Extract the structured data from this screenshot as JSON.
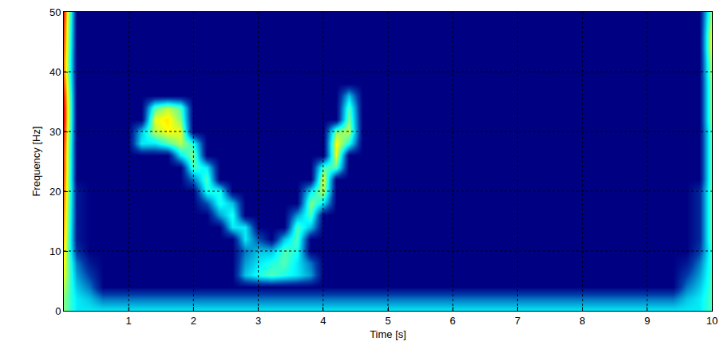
{
  "chart_data": {
    "type": "heatmap",
    "x_label": "Time [s]",
    "y_label": "Frequency [Hz]",
    "x": [
      0,
      0.2,
      0.4,
      0.6,
      0.8,
      1,
      1.2,
      1.4,
      1.6,
      1.8,
      2,
      2.2,
      2.4,
      2.6,
      2.8,
      3,
      3.2,
      3.4,
      3.6,
      3.8,
      4,
      4.2,
      4.4,
      4.6,
      4.8,
      5,
      5.2,
      5.4,
      5.6,
      5.8,
      6,
      6.2,
      6.4,
      6.6,
      6.8,
      7,
      7.2,
      7.4,
      7.6,
      7.8,
      8,
      8.2,
      8.4,
      8.6,
      8.8,
      9,
      9.2,
      9.4,
      9.6,
      9.8,
      10
    ],
    "y": [
      0,
      2,
      4,
      6,
      8,
      10,
      12,
      14,
      16,
      18,
      20,
      22,
      24,
      26,
      28,
      30,
      32,
      34,
      36,
      38,
      40,
      42,
      44,
      46,
      48,
      50
    ],
    "z": [
      [
        0.5,
        0.35,
        0.35,
        0.35,
        0.35,
        0.35,
        0.35,
        0.35,
        0.35,
        0.35,
        0.35,
        0.35,
        0.35,
        0.35,
        0.35,
        0.35,
        0.35,
        0.35,
        0.35,
        0.35,
        0.35,
        0.35,
        0.35,
        0.35,
        0.35,
        0.35,
        0.35,
        0.35,
        0.35,
        0.35,
        0.35,
        0.35,
        0.35,
        0.35,
        0.35,
        0.35,
        0.35,
        0.35,
        0.35,
        0.35,
        0.35,
        0.35,
        0.35,
        0.35,
        0.35,
        0.35,
        0.35,
        0.35,
        0.35,
        0.35,
        0.45
      ],
      [
        0.5,
        0.35,
        0.3,
        0.2,
        0.2,
        0.2,
        0.2,
        0.2,
        0.2,
        0.2,
        0.2,
        0.2,
        0.2,
        0.2,
        0.2,
        0.2,
        0.2,
        0.2,
        0.2,
        0.2,
        0.2,
        0.2,
        0.2,
        0.2,
        0.2,
        0.2,
        0.2,
        0.2,
        0.2,
        0.2,
        0.2,
        0.2,
        0.2,
        0.2,
        0.2,
        0.2,
        0.2,
        0.2,
        0.2,
        0.2,
        0.2,
        0.2,
        0.2,
        0.2,
        0.2,
        0.2,
        0.2,
        0.2,
        0.3,
        0.35,
        0.45
      ],
      [
        0.55,
        0.3,
        0.2,
        0,
        0,
        0,
        0,
        0,
        0,
        0,
        0,
        0,
        0,
        0,
        0,
        0,
        0,
        0,
        0,
        0,
        0,
        0,
        0,
        0,
        0,
        0,
        0,
        0,
        0,
        0,
        0,
        0,
        0,
        0,
        0,
        0,
        0,
        0,
        0,
        0,
        0,
        0,
        0,
        0,
        0,
        0,
        0,
        0,
        0.2,
        0.3,
        0.45
      ],
      [
        0.6,
        0.25,
        0.12,
        0,
        0,
        0,
        0,
        0,
        0,
        0,
        0,
        0,
        0,
        0,
        0.3,
        0.4,
        0.45,
        0.4,
        0.35,
        0.25,
        0,
        0,
        0,
        0,
        0,
        0,
        0,
        0,
        0,
        0,
        0,
        0,
        0,
        0,
        0,
        0,
        0,
        0,
        0,
        0,
        0,
        0,
        0,
        0,
        0,
        0,
        0,
        0,
        0.12,
        0.25,
        0.45
      ],
      [
        0.62,
        0.2,
        0.05,
        0,
        0,
        0,
        0,
        0,
        0,
        0,
        0,
        0,
        0,
        0,
        0.25,
        0.35,
        0.4,
        0.45,
        0.35,
        0.2,
        0,
        0,
        0,
        0,
        0,
        0,
        0,
        0,
        0,
        0,
        0,
        0,
        0,
        0,
        0,
        0,
        0,
        0,
        0,
        0,
        0,
        0,
        0,
        0,
        0,
        0,
        0,
        0,
        0.05,
        0.2,
        0.45
      ],
      [
        0.65,
        0.1,
        0,
        0,
        0,
        0,
        0,
        0,
        0,
        0,
        0,
        0,
        0,
        0,
        0.2,
        0.3,
        0.3,
        0.45,
        0.4,
        0,
        0,
        0,
        0,
        0,
        0,
        0,
        0,
        0,
        0,
        0,
        0,
        0,
        0,
        0,
        0,
        0,
        0,
        0,
        0,
        0,
        0,
        0,
        0,
        0,
        0,
        0,
        0,
        0,
        0,
        0.12,
        0.45
      ],
      [
        0.68,
        0.05,
        0,
        0,
        0,
        0,
        0,
        0,
        0,
        0,
        0,
        0,
        0,
        0,
        0.35,
        0.15,
        0,
        0.3,
        0.45,
        0,
        0,
        0,
        0,
        0,
        0,
        0,
        0,
        0,
        0,
        0,
        0,
        0,
        0,
        0,
        0,
        0,
        0,
        0,
        0,
        0,
        0,
        0,
        0,
        0,
        0,
        0,
        0,
        0,
        0,
        0.08,
        0.5
      ],
      [
        0.7,
        0.05,
        0,
        0,
        0,
        0,
        0,
        0,
        0,
        0,
        0,
        0,
        0,
        0.35,
        0.35,
        0,
        0,
        0,
        0.45,
        0.3,
        0,
        0,
        0,
        0,
        0,
        0,
        0,
        0,
        0,
        0,
        0,
        0,
        0,
        0,
        0,
        0,
        0,
        0,
        0,
        0,
        0,
        0,
        0,
        0,
        0,
        0,
        0,
        0,
        0,
        0.08,
        0.5
      ],
      [
        0.72,
        0.05,
        0,
        0,
        0,
        0,
        0,
        0,
        0,
        0,
        0,
        0,
        0.25,
        0.4,
        0,
        0,
        0,
        0,
        0.25,
        0.45,
        0,
        0,
        0,
        0,
        0,
        0,
        0,
        0,
        0,
        0,
        0,
        0,
        0,
        0,
        0,
        0,
        0,
        0,
        0,
        0,
        0,
        0,
        0,
        0,
        0,
        0,
        0,
        0,
        0,
        0.08,
        0.5
      ],
      [
        0.74,
        0.05,
        0,
        0,
        0,
        0,
        0,
        0,
        0,
        0,
        0,
        0.15,
        0.4,
        0.3,
        0,
        0,
        0,
        0,
        0,
        0.5,
        0.35,
        0,
        0,
        0,
        0,
        0,
        0,
        0,
        0,
        0,
        0,
        0,
        0,
        0,
        0,
        0,
        0,
        0,
        0,
        0,
        0,
        0,
        0,
        0,
        0,
        0,
        0,
        0,
        0,
        0.08,
        0.5
      ],
      [
        0.76,
        0.05,
        0,
        0,
        0,
        0,
        0,
        0,
        0,
        0,
        0,
        0.4,
        0.4,
        0,
        0,
        0,
        0,
        0,
        0,
        0.35,
        0.55,
        0,
        0,
        0,
        0,
        0,
        0,
        0,
        0,
        0,
        0,
        0,
        0,
        0,
        0,
        0,
        0,
        0,
        0,
        0,
        0,
        0,
        0,
        0,
        0,
        0,
        0,
        0,
        0,
        0.08,
        0.5
      ],
      [
        0.78,
        0,
        0,
        0,
        0,
        0,
        0,
        0,
        0,
        0,
        0.2,
        0.45,
        0,
        0,
        0,
        0,
        0,
        0,
        0,
        0,
        0.6,
        0,
        0,
        0,
        0,
        0,
        0,
        0,
        0,
        0,
        0,
        0,
        0,
        0,
        0,
        0,
        0,
        0,
        0,
        0,
        0,
        0,
        0,
        0,
        0,
        0,
        0,
        0,
        0,
        0,
        0.5
      ],
      [
        0.8,
        0,
        0,
        0,
        0,
        0,
        0,
        0,
        0,
        0,
        0.45,
        0.35,
        0,
        0,
        0,
        0,
        0,
        0,
        0,
        0,
        0.45,
        0.45,
        0,
        0,
        0,
        0,
        0,
        0,
        0,
        0,
        0,
        0,
        0,
        0,
        0,
        0,
        0,
        0,
        0,
        0,
        0,
        0,
        0,
        0,
        0,
        0,
        0,
        0,
        0,
        0,
        0.5
      ],
      [
        0.8,
        0,
        0,
        0,
        0,
        0,
        0,
        0,
        0,
        0.35,
        0.5,
        0,
        0,
        0,
        0,
        0,
        0,
        0,
        0,
        0,
        0,
        0.6,
        0,
        0,
        0,
        0,
        0,
        0,
        0,
        0,
        0,
        0,
        0,
        0,
        0,
        0,
        0,
        0,
        0,
        0,
        0,
        0,
        0,
        0,
        0,
        0,
        0,
        0,
        0,
        0,
        0.5
      ],
      [
        0.82,
        0,
        0,
        0,
        0,
        0,
        0.35,
        0.35,
        0.45,
        0.55,
        0.4,
        0,
        0,
        0,
        0,
        0,
        0,
        0,
        0,
        0,
        0,
        0.62,
        0.4,
        0,
        0,
        0,
        0,
        0,
        0,
        0,
        0,
        0,
        0,
        0,
        0,
        0,
        0,
        0,
        0,
        0,
        0,
        0,
        0,
        0,
        0,
        0,
        0,
        0,
        0,
        0,
        0.5
      ],
      [
        0.85,
        0,
        0,
        0,
        0,
        0,
        0.3,
        0.55,
        0.62,
        0.6,
        0,
        0,
        0,
        0,
        0,
        0,
        0,
        0,
        0,
        0,
        0,
        0.5,
        0.55,
        0,
        0,
        0,
        0,
        0,
        0,
        0,
        0,
        0,
        0,
        0,
        0,
        0,
        0,
        0,
        0,
        0,
        0,
        0,
        0,
        0,
        0,
        0,
        0,
        0,
        0,
        0,
        0.5
      ],
      [
        0.88,
        0,
        0,
        0,
        0,
        0,
        0,
        0.6,
        0.65,
        0.5,
        0,
        0,
        0,
        0,
        0,
        0,
        0,
        0,
        0,
        0,
        0,
        0,
        0.5,
        0,
        0,
        0,
        0,
        0,
        0,
        0,
        0,
        0,
        0,
        0,
        0,
        0,
        0,
        0,
        0,
        0,
        0,
        0,
        0,
        0,
        0,
        0,
        0,
        0,
        0,
        0,
        0.55
      ],
      [
        0.88,
        0,
        0,
        0,
        0,
        0,
        0,
        0.45,
        0.55,
        0.45,
        0,
        0,
        0,
        0,
        0,
        0,
        0,
        0,
        0,
        0,
        0,
        0,
        0.45,
        0,
        0,
        0,
        0,
        0,
        0,
        0,
        0,
        0,
        0,
        0,
        0,
        0,
        0,
        0,
        0,
        0,
        0,
        0,
        0,
        0,
        0,
        0,
        0,
        0,
        0,
        0,
        0.55
      ],
      [
        0.85,
        0,
        0,
        0,
        0,
        0,
        0,
        0,
        0,
        0,
        0,
        0,
        0,
        0,
        0,
        0,
        0,
        0,
        0,
        0,
        0,
        0,
        0.3,
        0,
        0,
        0,
        0,
        0,
        0,
        0,
        0,
        0,
        0,
        0,
        0,
        0,
        0,
        0,
        0,
        0,
        0,
        0,
        0,
        0,
        0,
        0,
        0,
        0,
        0,
        0,
        0.55
      ],
      [
        0.8,
        0,
        0,
        0,
        0,
        0,
        0,
        0,
        0,
        0,
        0,
        0,
        0,
        0,
        0,
        0,
        0,
        0,
        0,
        0,
        0,
        0,
        0,
        0,
        0,
        0,
        0,
        0,
        0,
        0,
        0,
        0,
        0,
        0,
        0,
        0,
        0,
        0,
        0,
        0,
        0,
        0,
        0,
        0,
        0,
        0,
        0,
        0,
        0,
        0,
        0.55
      ],
      [
        0.75,
        0,
        0,
        0,
        0,
        0,
        0,
        0,
        0,
        0,
        0,
        0,
        0,
        0,
        0,
        0,
        0,
        0,
        0,
        0,
        0,
        0,
        0,
        0,
        0,
        0,
        0,
        0,
        0,
        0,
        0,
        0,
        0,
        0,
        0,
        0,
        0,
        0,
        0,
        0,
        0,
        0,
        0,
        0,
        0,
        0,
        0,
        0,
        0,
        0,
        0.58
      ],
      [
        0.75,
        0,
        0,
        0,
        0,
        0,
        0,
        0,
        0,
        0,
        0,
        0,
        0,
        0,
        0,
        0,
        0,
        0,
        0,
        0,
        0,
        0,
        0,
        0,
        0,
        0,
        0,
        0,
        0,
        0,
        0,
        0,
        0,
        0,
        0,
        0,
        0,
        0,
        0,
        0,
        0,
        0,
        0,
        0,
        0,
        0,
        0,
        0,
        0,
        0,
        0.6
      ],
      [
        0.78,
        0,
        0,
        0,
        0,
        0,
        0,
        0,
        0,
        0,
        0,
        0,
        0,
        0,
        0,
        0,
        0,
        0,
        0,
        0,
        0,
        0,
        0,
        0,
        0,
        0,
        0,
        0,
        0,
        0,
        0,
        0,
        0,
        0,
        0,
        0,
        0,
        0,
        0,
        0,
        0,
        0,
        0,
        0,
        0,
        0,
        0,
        0,
        0,
        0,
        0.65
      ],
      [
        0.8,
        0,
        0,
        0,
        0,
        0,
        0,
        0,
        0,
        0,
        0,
        0,
        0,
        0,
        0,
        0,
        0,
        0,
        0,
        0,
        0,
        0,
        0,
        0,
        0,
        0,
        0,
        0,
        0,
        0,
        0,
        0,
        0,
        0,
        0,
        0,
        0,
        0,
        0,
        0,
        0,
        0,
        0,
        0,
        0,
        0,
        0,
        0,
        0,
        0,
        0.65
      ],
      [
        0.82,
        0,
        0,
        0,
        0,
        0,
        0,
        0,
        0,
        0,
        0,
        0,
        0,
        0,
        0,
        0,
        0,
        0,
        0,
        0,
        0,
        0,
        0,
        0,
        0,
        0,
        0,
        0,
        0,
        0,
        0,
        0,
        0,
        0,
        0,
        0,
        0,
        0,
        0,
        0,
        0,
        0,
        0,
        0,
        0,
        0,
        0,
        0,
        0,
        0,
        0.6
      ],
      [
        0.85,
        0,
        0,
        0,
        0,
        0,
        0,
        0,
        0,
        0,
        0,
        0,
        0,
        0,
        0,
        0,
        0,
        0,
        0,
        0,
        0,
        0,
        0,
        0,
        0,
        0,
        0,
        0,
        0,
        0,
        0,
        0,
        0,
        0,
        0,
        0,
        0,
        0,
        0,
        0,
        0,
        0,
        0,
        0,
        0,
        0,
        0,
        0,
        0,
        0,
        0.55
      ]
    ],
    "zlim": [
      0,
      1
    ],
    "color": "Jet",
    "xlim": [
      0,
      10
    ],
    "ylim": [
      0,
      50
    ],
    "xticks": [
      1,
      2,
      3,
      4,
      5,
      6,
      7,
      8,
      9,
      10
    ],
    "yticks": [
      0,
      10,
      20,
      30,
      40,
      50
    ],
    "grid": true
  }
}
